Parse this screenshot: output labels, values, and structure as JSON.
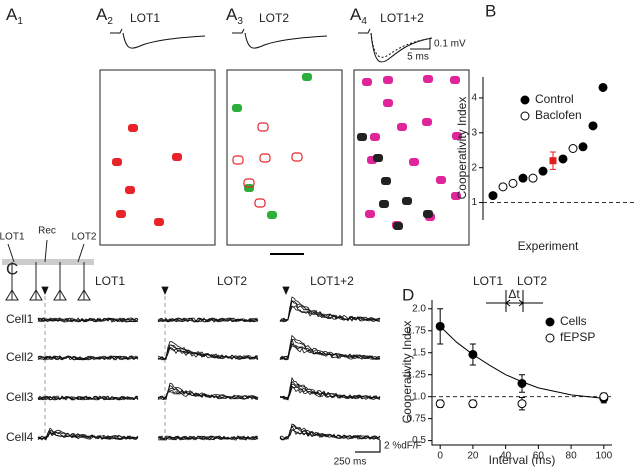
{
  "panel_a": {
    "labels": [
      {
        "letter": "A",
        "sub": "1"
      },
      {
        "letter": "A",
        "sub": "2"
      },
      {
        "letter": "A",
        "sub": "3"
      },
      {
        "letter": "A",
        "sub": "4"
      }
    ],
    "titles": [
      "LOT1",
      "LOT2",
      "LOT1+2"
    ],
    "scale": [
      "0.1 mV",
      "5 ms"
    ],
    "schematic": [
      "LOT1",
      "Rec",
      "LOT2"
    ]
  },
  "panel_c": {
    "label": "C",
    "titles": [
      "LOT1",
      "LOT2",
      "LOT1+2"
    ],
    "cells": [
      "Cell1",
      "Cell2",
      "Cell3",
      "Cell4"
    ],
    "scale": [
      "2 %dF/F",
      "250 ms"
    ]
  },
  "chart_data": [
    {
      "type": "scatter",
      "label": "B",
      "ylabel": "Cooperativity Index",
      "xlabel": "Experiment",
      "xlim": [
        0,
        13
      ],
      "ylim": [
        0.5,
        4.6
      ],
      "yticks": [
        1,
        2,
        3,
        4
      ],
      "hline": 1,
      "series": [
        {
          "name": "Control",
          "marker": "filled",
          "color": "#000000",
          "x": [
            1,
            4,
            6,
            8,
            10,
            11,
            12
          ],
          "values": [
            1.2,
            1.7,
            1.9,
            2.25,
            2.6,
            3.2,
            4.3
          ]
        },
        {
          "name": "Baclofen",
          "marker": "open",
          "color": "#000000",
          "x": [
            2,
            3,
            5,
            9
          ],
          "values": [
            1.45,
            1.55,
            1.7,
            2.55
          ]
        }
      ],
      "mean": {
        "x": 7,
        "value": 2.2,
        "error": 0.25,
        "color": "#e02020"
      }
    },
    {
      "type": "line",
      "label": "D",
      "ylabel": "Cooperativity Index",
      "xlabel": "Interval (ms)",
      "xlim": [
        -5,
        105
      ],
      "ylim": [
        0.45,
        2.1
      ],
      "xticks": [
        0,
        20,
        40,
        60,
        80,
        100
      ],
      "yticks": [
        {
          "value": 0.5,
          "label": "0.5"
        },
        0.75,
        {
          "value": 1,
          "label": "1.0"
        },
        1.25,
        1.5,
        1.75,
        {
          "value": 2,
          "label": "2.0"
        }
      ],
      "hline": 1,
      "series": [
        {
          "name": "Cells",
          "marker": "filled",
          "color": "#000000",
          "x": [
            0,
            20,
            50,
            100
          ],
          "values": [
            1.8,
            1.48,
            1.15,
            0.98
          ],
          "errors": [
            0.2,
            0.12,
            0.1,
            0.05
          ]
        },
        {
          "name": "fEPSP",
          "marker": "open",
          "color": "#000000",
          "x": [
            0,
            20,
            50,
            100
          ],
          "values": [
            0.92,
            0.92,
            0.92,
            1.0
          ],
          "errors": [
            0.04,
            0.04,
            0.07,
            0.04
          ]
        }
      ],
      "fit": {
        "x": [
          0,
          10,
          20,
          30,
          40,
          50,
          60,
          70,
          80,
          90,
          100
        ],
        "values": [
          1.8,
          1.62,
          1.48,
          1.36,
          1.25,
          1.17,
          1.1,
          1.06,
          1.02,
          1.0,
          0.98
        ]
      },
      "inset": {
        "labels": [
          "LOT1",
          "LOT2"
        ],
        "delta": "Δt"
      }
    }
  ]
}
